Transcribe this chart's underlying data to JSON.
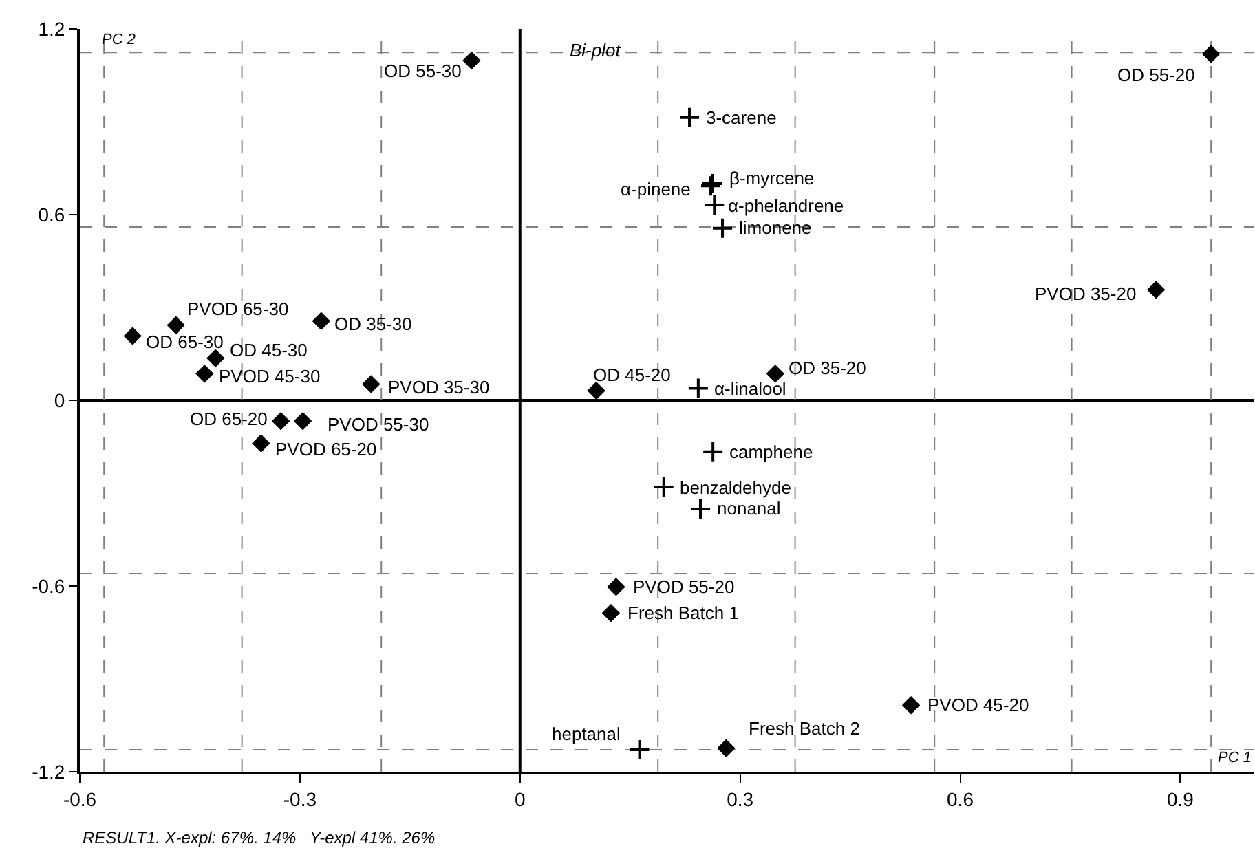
{
  "chart_data": {
    "type": "scatter",
    "title": "Bi-plot",
    "xlabel": "PC 1",
    "ylabel": "PC 2",
    "xlim": [
      -0.6,
      1.0
    ],
    "ylim": [
      -1.2,
      1.2
    ],
    "xticks": [
      -0.6,
      -0.3,
      0,
      0.3,
      0.6,
      0.9
    ],
    "yticks": [
      -1.2,
      -0.6,
      0,
      0.6,
      1.2
    ],
    "grid": false,
    "series": [
      {
        "color": "#000000",
        "marker": "diamond",
        "x": [
          -0.066,
          -0.469,
          -0.528,
          -0.271,
          -0.415,
          -0.43,
          -0.203,
          -0.326,
          -0.296,
          -0.353,
          0.104,
          0.348,
          0.942,
          0.867,
          0.131,
          0.124,
          0.533,
          0.281
        ],
        "values": [
          1.098,
          0.243,
          0.208,
          0.256,
          0.136,
          0.086,
          0.052,
          -0.067,
          -0.067,
          -0.139,
          0.031,
          0.086,
          1.119,
          0.357,
          -0.603,
          -0.687,
          -0.985,
          -1.124
        ]
      },
      {
        "color": "#000000",
        "marker": "cross",
        "x": [
          0.243,
          0.231,
          0.26,
          0.262,
          0.265,
          0.276,
          0.263,
          0.196,
          0.246,
          0.163
        ],
        "values": [
          0.039,
          0.914,
          0.693,
          0.7,
          0.631,
          0.556,
          -0.166,
          -0.28,
          -0.351,
          -1.129
        ]
      }
    ],
    "ref_lines": [
      {
        "axis": "x",
        "value": 0,
        "color": "#000000",
        "line_style": "solid"
      },
      {
        "axis": "y",
        "value": 0,
        "color": "#000000",
        "line_style": "solid"
      },
      {
        "axis": "x",
        "value": -0.567,
        "color": "#808080",
        "line_style": "dashed"
      },
      {
        "axis": "x",
        "value": -0.379,
        "color": "#808080",
        "line_style": "dashed"
      },
      {
        "axis": "x",
        "value": -0.189,
        "color": "#808080",
        "line_style": "dashed"
      },
      {
        "axis": "x",
        "value": 0.188,
        "color": "#808080",
        "line_style": "dashed"
      },
      {
        "axis": "x",
        "value": 0.375,
        "color": "#808080",
        "line_style": "dashed"
      },
      {
        "axis": "x",
        "value": 0.565,
        "color": "#808080",
        "line_style": "dashed"
      },
      {
        "axis": "x",
        "value": 0.752,
        "color": "#808080",
        "line_style": "dashed"
      },
      {
        "axis": "x",
        "value": 0.942,
        "color": "#808080",
        "line_style": "dashed"
      },
      {
        "axis": "y",
        "value": 1.124,
        "color": "#808080",
        "line_style": "dashed"
      },
      {
        "axis": "y",
        "value": 0.56,
        "color": "#808080",
        "line_style": "dashed"
      },
      {
        "axis": "y",
        "value": -0.56,
        "color": "#808080",
        "line_style": "dashed"
      },
      {
        "axis": "y",
        "value": -1.129,
        "color": "#808080",
        "line_style": "dashed"
      }
    ],
    "annotations": [
      {
        "text": "OD 55-30",
        "x": -0.066,
        "y": 1.098
      },
      {
        "text": "PVOD 65-30",
        "x": -0.469,
        "y": 0.243
      },
      {
        "text": "OD 65-30",
        "x": -0.528,
        "y": 0.208
      },
      {
        "text": "OD 35-30",
        "x": -0.271,
        "y": 0.256
      },
      {
        "text": "OD 45-30",
        "x": -0.415,
        "y": 0.136
      },
      {
        "text": "PVOD 45-30",
        "x": -0.43,
        "y": 0.086
      },
      {
        "text": "PVOD 35-30",
        "x": -0.203,
        "y": 0.052
      },
      {
        "text": "OD 65-20",
        "x": -0.326,
        "y": -0.067
      },
      {
        "text": "PVOD 55-30",
        "x": -0.296,
        "y": -0.067
      },
      {
        "text": "PVOD 65-20",
        "x": -0.353,
        "y": -0.139
      },
      {
        "text": "OD 45-20",
        "x": 0.104,
        "y": 0.031
      },
      {
        "text": "OD 35-20",
        "x": 0.348,
        "y": 0.086
      },
      {
        "text": "OD 55-20",
        "x": 0.942,
        "y": 1.119
      },
      {
        "text": "PVOD 35-20",
        "x": 0.867,
        "y": 0.357
      },
      {
        "text": "PVOD 55-20",
        "x": 0.131,
        "y": -0.603
      },
      {
        "text": "Fresh Batch 1",
        "x": 0.124,
        "y": -0.687
      },
      {
        "text": "PVOD 45-20",
        "x": 0.533,
        "y": -0.985
      },
      {
        "text": "Fresh Batch 2",
        "x": 0.281,
        "y": -1.124
      },
      {
        "text": "α-linalool",
        "x": 0.243,
        "y": 0.039
      },
      {
        "text": "3-carene",
        "x": 0.231,
        "y": 0.914
      },
      {
        "text": "α-pinene",
        "x": 0.26,
        "y": 0.693
      },
      {
        "text": "β-myrcene",
        "x": 0.262,
        "y": 0.7
      },
      {
        "text": "α-phelandrene",
        "x": 0.265,
        "y": 0.631
      },
      {
        "text": "limonene",
        "x": 0.276,
        "y": 0.556
      },
      {
        "text": "camphene",
        "x": 0.263,
        "y": -0.166
      },
      {
        "text": "benzaldehyde",
        "x": 0.196,
        "y": -0.28
      },
      {
        "text": "nonanal",
        "x": 0.246,
        "y": -0.351
      },
      {
        "text": "heptanal",
        "x": 0.163,
        "y": -1.129
      },
      "RESULT1. X-expl: 67%. 14%   Y-expl 41%. 26%"
    ]
  }
}
